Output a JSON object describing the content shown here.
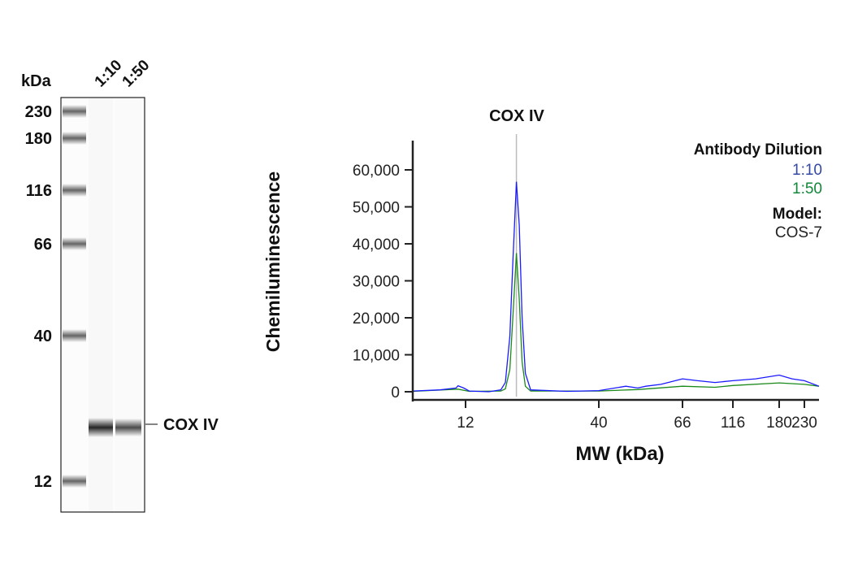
{
  "blot": {
    "unit_label": "kDa",
    "lane_labels": [
      "1:10",
      "1:50"
    ],
    "ladder": [
      {
        "label": "230",
        "kda": 230
      },
      {
        "label": "180",
        "kda": 180
      },
      {
        "label": "116",
        "kda": 116
      },
      {
        "label": "66",
        "kda": 66
      },
      {
        "label": "40",
        "kda": 40
      },
      {
        "label": "12",
        "kda": 12
      }
    ],
    "band_label": "COX IV",
    "band_intensity": [
      0.85,
      0.7
    ]
  },
  "chart_data": {
    "type": "line",
    "title": "COX IV",
    "xlabel": "MW (kDa)",
    "ylabel": "Chemiluminescence",
    "xticks": [
      12,
      40,
      66,
      116,
      180,
      230
    ],
    "xtick_labels": [
      "12",
      "40",
      "66",
      "116",
      "180",
      "230"
    ],
    "yticks": [
      0,
      10000,
      20000,
      30000,
      40000,
      50000,
      60000
    ],
    "ytick_labels": [
      "0",
      "10,000",
      "20,000",
      "30,000",
      "40,000",
      "50,000",
      "60,000"
    ],
    "ylim": [
      0,
      65000
    ],
    "xlim": [
      7.4,
      265
    ],
    "marker_line_kda": 19,
    "legend": {
      "title": "Antibody Dilution",
      "model_label": "Model:",
      "model_value": "COS-7",
      "placement": "top-right"
    },
    "series": [
      {
        "name": "1:10",
        "color": "#1a1aff",
        "label_color": "#3548a5",
        "x": [
          7.4,
          9.5,
          11,
          11.2,
          11.8,
          12.4,
          14.8,
          16.5,
          17.2,
          17.9,
          18.4,
          19,
          19.5,
          20,
          20.6,
          21.6,
          30,
          40,
          47,
          50.5,
          53,
          58,
          66,
          78,
          95,
          116,
          144,
          180,
          204,
          230,
          265
        ],
        "y": [
          200,
          500,
          1000,
          1600,
          1000,
          200,
          0,
          500,
          2500,
          15000,
          35000,
          56800,
          45000,
          20000,
          5000,
          500,
          100,
          300,
          1500,
          1000,
          1500,
          2000,
          3500,
          3000,
          2500,
          3000,
          3500,
          4500,
          3500,
          3000,
          1500
        ]
      },
      {
        "name": "1:50",
        "color": "#1a8a1a",
        "label_color": "#13873a",
        "x": [
          7.4,
          11.2,
          12.4,
          16.5,
          17.2,
          17.9,
          18.4,
          19,
          19.5,
          20,
          20.6,
          21.6,
          40,
          50.5,
          66,
          95,
          116,
          180,
          230,
          265
        ],
        "y": [
          100,
          700,
          100,
          200,
          800,
          6000,
          20000,
          37500,
          25000,
          8000,
          1500,
          200,
          200,
          600,
          1500,
          1200,
          1700,
          2400,
          2000,
          1500
        ]
      }
    ]
  }
}
